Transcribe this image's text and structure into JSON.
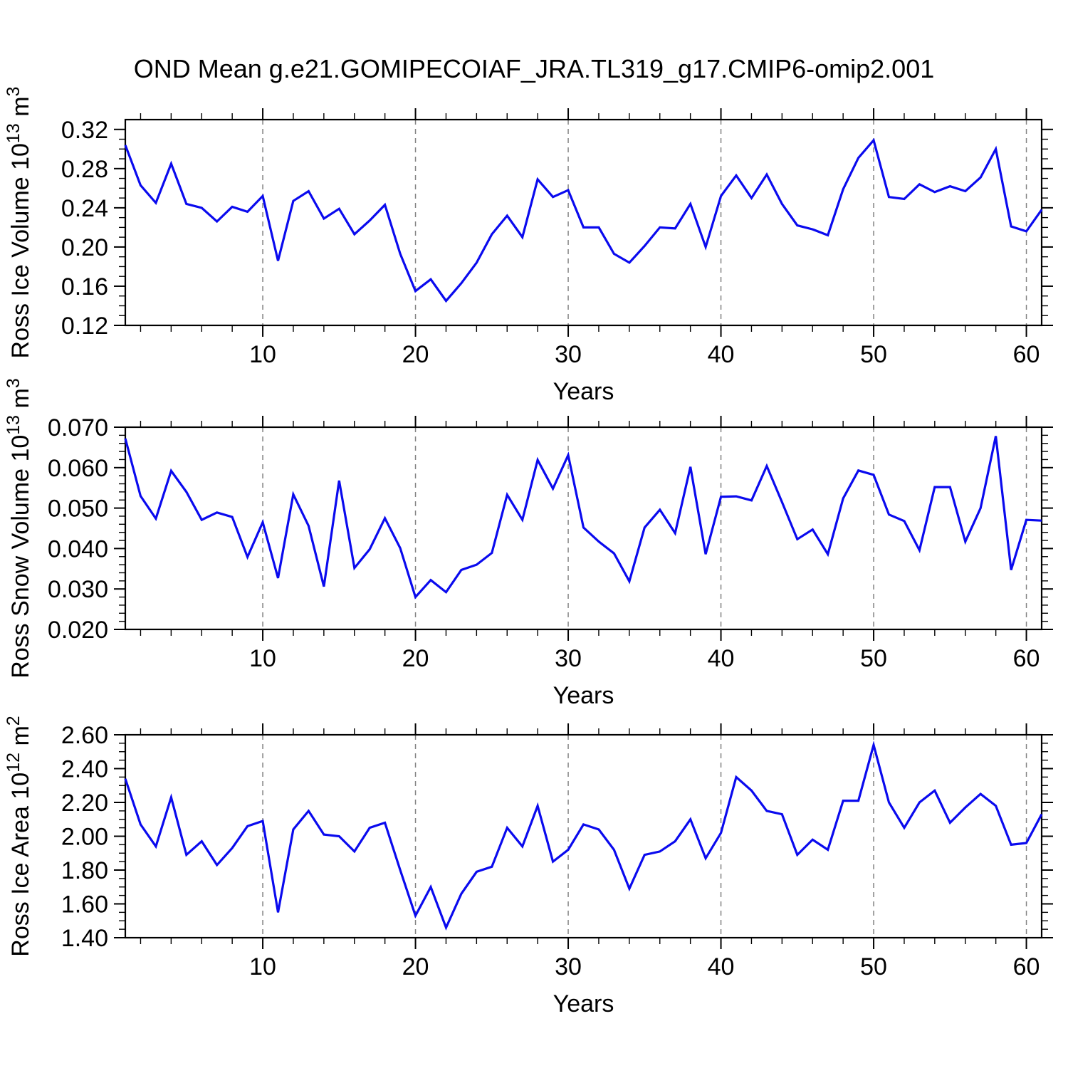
{
  "title": "OND Mean g.e21.GOMIPECOIAF_JRA.TL319_g17.CMIP6-omip2.001",
  "style": {
    "line_color": "#0a0aee",
    "grid_color": "#828282",
    "axis_color": "#000000",
    "background": "#ffffff"
  },
  "chart_data": [
    {
      "type": "line",
      "name": "ross-ice-volume",
      "ylabel": "Ross Ice Volume 10^13^ m^3^",
      "xlabel": "Years",
      "x_range": [
        1,
        61
      ],
      "x_step": 1,
      "ylim": [
        0.12,
        0.33
      ],
      "ytick_step": 0.04,
      "yminor_step": 0.01,
      "ytick_decimals": 2,
      "xticks": [
        10,
        20,
        30,
        40,
        50,
        60
      ],
      "xminor_step": 2,
      "grid": "vertical-dashed",
      "legend": "none",
      "values": [
        0.304,
        0.263,
        0.245,
        0.285,
        0.244,
        0.24,
        0.226,
        0.241,
        0.236,
        0.252,
        0.186,
        0.247,
        0.257,
        0.229,
        0.239,
        0.213,
        0.227,
        0.243,
        0.193,
        0.155,
        0.167,
        0.145,
        0.163,
        0.184,
        0.213,
        0.232,
        0.21,
        0.269,
        0.251,
        0.258,
        0.22,
        0.22,
        0.193,
        0.184,
        0.201,
        0.22,
        0.219,
        0.244,
        0.2,
        0.252,
        0.273,
        0.25,
        0.274,
        0.244,
        0.222,
        0.218,
        0.212,
        0.259,
        0.291,
        0.309,
        0.251,
        0.249,
        0.264,
        0.256,
        0.262,
        0.257,
        0.271,
        0.3,
        0.221,
        0.216,
        0.238
      ]
    },
    {
      "type": "line",
      "name": "ross-snow-volume",
      "ylabel": "Ross Snow Volume 10^13^ m^3^",
      "xlabel": "Years",
      "x_range": [
        1,
        61
      ],
      "x_step": 1,
      "ylim": [
        0.02,
        0.07
      ],
      "ytick_step": 0.01,
      "yminor_step": 0.002,
      "ytick_decimals": 3,
      "xticks": [
        10,
        20,
        30,
        40,
        50,
        60
      ],
      "xminor_step": 2,
      "grid": "vertical-dashed",
      "legend": "none",
      "values": [
        0.0672,
        0.053,
        0.0474,
        0.0592,
        0.054,
        0.0471,
        0.0489,
        0.0478,
        0.0379,
        0.0465,
        0.0327,
        0.0534,
        0.0456,
        0.0306,
        0.0568,
        0.0352,
        0.0398,
        0.0475,
        0.0401,
        0.028,
        0.0322,
        0.0292,
        0.0347,
        0.036,
        0.0389,
        0.0533,
        0.0471,
        0.0619,
        0.0548,
        0.0631,
        0.0452,
        0.0417,
        0.0388,
        0.0319,
        0.0452,
        0.0496,
        0.0438,
        0.0602,
        0.0386,
        0.0528,
        0.0529,
        0.0519,
        0.0604,
        0.0515,
        0.0423,
        0.0447,
        0.0386,
        0.0524,
        0.0593,
        0.0582,
        0.0484,
        0.0468,
        0.0396,
        0.0552,
        0.0552,
        0.0417,
        0.05,
        0.0678,
        0.0347,
        0.0471,
        0.0469
      ]
    },
    {
      "type": "line",
      "name": "ross-ice-area",
      "ylabel": "Ross Ice Area 10^12^ m^2^",
      "xlabel": "Years",
      "x_range": [
        1,
        61
      ],
      "x_step": 1,
      "ylim": [
        1.4,
        2.6
      ],
      "ytick_step": 0.2,
      "yminor_step": 0.05,
      "ytick_decimals": 2,
      "xticks": [
        10,
        20,
        30,
        40,
        50,
        60
      ],
      "xminor_step": 2,
      "grid": "vertical-dashed",
      "legend": "none",
      "values": [
        2.34,
        2.07,
        1.94,
        2.23,
        1.89,
        1.97,
        1.83,
        1.93,
        2.06,
        2.09,
        1.55,
        2.04,
        2.15,
        2.01,
        2.0,
        1.91,
        2.05,
        2.08,
        1.8,
        1.53,
        1.7,
        1.46,
        1.66,
        1.79,
        1.82,
        2.05,
        1.94,
        2.18,
        1.85,
        1.92,
        2.07,
        2.04,
        1.92,
        1.69,
        1.89,
        1.91,
        1.97,
        2.1,
        1.87,
        2.02,
        2.35,
        2.27,
        2.15,
        2.13,
        1.89,
        1.98,
        1.92,
        2.21,
        2.21,
        2.54,
        2.2,
        2.05,
        2.2,
        2.27,
        2.08,
        2.17,
        2.25,
        2.18,
        1.95,
        1.96,
        2.13
      ]
    }
  ]
}
